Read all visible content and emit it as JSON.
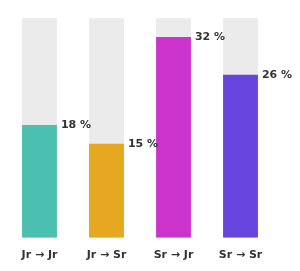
{
  "chart_data": {
    "type": "bar",
    "categories": [
      "Jr → Jr",
      "Jr → Sr",
      "Sr → Jr",
      "Sr → Sr"
    ],
    "values": [
      18,
      15,
      32,
      26
    ],
    "value_labels": [
      "18 %",
      "15 %",
      "32 %",
      "26 %"
    ],
    "max_value": 35,
    "colors": [
      "#4BBFB0",
      "#E5A820",
      "#CC33CC",
      "#6644DD"
    ],
    "ylim": [
      0,
      36
    ],
    "data_labels": true,
    "tick_labels": "x",
    "grid": false
  }
}
